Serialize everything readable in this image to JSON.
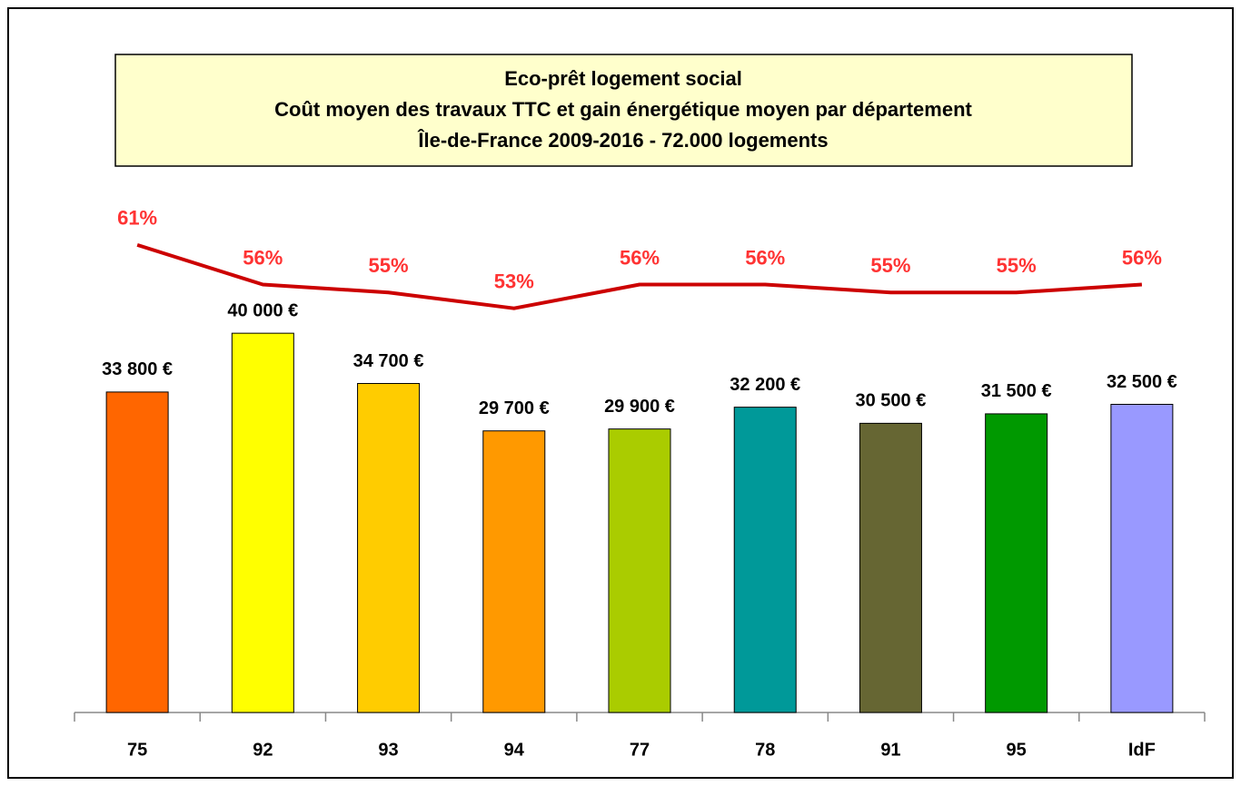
{
  "chart_data": {
    "type": "bar",
    "title": [
      "Eco-prêt logement social",
      "Coût moyen des travaux TTC et gain énergétique moyen par département",
      "Île-de-France 2009-2016 - 72.000 logements"
    ],
    "categories": [
      "75",
      "92",
      "93",
      "94",
      "77",
      "78",
      "91",
      "95",
      "IdF"
    ],
    "series": [
      {
        "type": "bar",
        "colors": [
          "#ff6600",
          "#ffff00",
          "#ffcc00",
          "#ff9900",
          "#aacc00",
          "#009999",
          "#666633",
          "#009900",
          "#9999ff"
        ],
        "values": [
          33800,
          40000,
          34700,
          29700,
          29900,
          32200,
          30500,
          31500,
          32500
        ],
        "value_labels": [
          "33 800 €",
          "40 000 €",
          "34 700 €",
          "29 700 €",
          "29 900 €",
          "32 200 €",
          "30 500 €",
          "31 500 €",
          "32 500 €"
        ]
      },
      {
        "type": "line",
        "axis": "y2",
        "color": "#cc0000",
        "label_color": "#ff3333",
        "values": [
          61,
          56,
          55,
          53,
          56,
          56,
          55,
          55,
          56
        ],
        "value_labels": [
          "61%",
          "56%",
          "55%",
          "53%",
          "56%",
          "56%",
          "55%",
          "55%",
          "56%"
        ]
      }
    ],
    "ylim": [
      0,
      56000
    ],
    "y2lim": [
      2,
      69
    ]
  }
}
